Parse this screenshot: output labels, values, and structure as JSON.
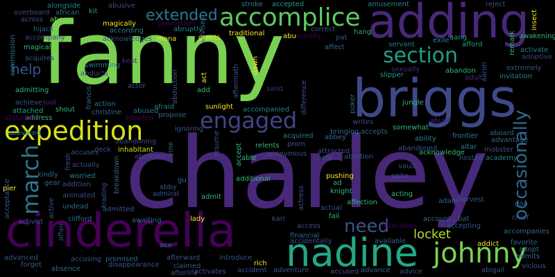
{
  "background": "#000000",
  "palette": [
    "#fde725",
    "#b5de2b",
    "#6ece58",
    "#35b779",
    "#1f9e89",
    "#26828e",
    "#31688e",
    "#3e4989",
    "#482878",
    "#440154"
  ],
  "words": [
    {
      "t": "fanny",
      "c": "#7ad151"
    },
    {
      "t": "charley",
      "c": "#482878"
    },
    {
      "t": "briggs",
      "c": "#3e4989"
    },
    {
      "t": "adding",
      "c": "#482878"
    },
    {
      "t": "cinderella",
      "c": "#440154"
    },
    {
      "t": "nadine",
      "c": "#22a884"
    },
    {
      "t": "expedition",
      "c": "#d8e219"
    },
    {
      "t": "accomplice",
      "c": "#5ec962"
    },
    {
      "t": "johnny",
      "c": "#7ad151"
    },
    {
      "t": "section",
      "c": "#1f9e89"
    },
    {
      "t": "engaged",
      "c": "#414487"
    },
    {
      "t": "march",
      "c": "#2a788e"
    },
    {
      "t": "need",
      "c": "#3b528b"
    },
    {
      "t": "occasionally",
      "c": "#31688e"
    },
    {
      "t": "extended",
      "c": "#2a788e"
    },
    {
      "t": "locket",
      "c": "#b5de2b"
    },
    {
      "t": "help",
      "c": "#3b528b"
    },
    {
      "t": "alongside",
      "c": "#26828e"
    },
    {
      "t": "abusive",
      "c": "#3e4989"
    },
    {
      "t": "stroke",
      "c": "#26828e"
    },
    {
      "t": "accepted",
      "c": "#1f9e89"
    },
    {
      "t": "amusement",
      "c": "#26828e"
    },
    {
      "t": "reject",
      "c": "#3e4989"
    },
    {
      "t": "overboard",
      "c": "#3e4989"
    },
    {
      "t": "african",
      "c": "#2a788e"
    },
    {
      "t": "kit",
      "c": "#1f9e89"
    },
    {
      "t": "across",
      "c": "#3b528b"
    },
    {
      "t": "abe",
      "c": "#6ece58"
    },
    {
      "t": "magically",
      "c": "#fde725"
    },
    {
      "t": "godmother",
      "c": "#440154"
    },
    {
      "t": "advises",
      "c": "#31688e"
    },
    {
      "t": "hijack",
      "c": "#31688e"
    },
    {
      "t": "according",
      "c": "#2a788e"
    },
    {
      "t": "abruptly",
      "c": "#26828e"
    },
    {
      "t": "traditional",
      "c": "#fde725"
    },
    {
      "t": "abu",
      "c": "#fde725"
    },
    {
      "t": "correct",
      "c": "#3b528b"
    },
    {
      "t": "hang",
      "c": "#22a884"
    },
    {
      "t": "aang",
      "c": "#1f9e89"
    },
    {
      "t": "afford",
      "c": "#1f9e89"
    },
    {
      "t": "awakening",
      "c": "#35b779"
    },
    {
      "t": "accompany",
      "c": "#414487"
    },
    {
      "t": "acknowledges",
      "c": "#3b528b"
    },
    {
      "t": "mona",
      "c": "#fde725"
    },
    {
      "t": "greets",
      "c": "#fde725"
    },
    {
      "t": "activity",
      "c": "#440154"
    },
    {
      "t": "pat",
      "c": "#3b528b"
    },
    {
      "t": "servant",
      "c": "#2a788e"
    },
    {
      "t": "exile",
      "c": "#26828e"
    },
    {
      "t": "activate",
      "c": "#26828e"
    },
    {
      "t": "adoptive",
      "c": "#414487"
    },
    {
      "t": "commission",
      "c": "#2a788e"
    },
    {
      "t": "magical",
      "c": "#35b779"
    },
    {
      "t": "affect",
      "c": "#31688e"
    },
    {
      "t": "abandon",
      "c": "#35b779"
    },
    {
      "t": "sexually",
      "c": "#482878"
    },
    {
      "t": "acquires",
      "c": "#3b528b"
    },
    {
      "t": "abducts",
      "c": "#414487"
    },
    {
      "t": "swimming",
      "c": "#2a788e"
    },
    {
      "t": "kept",
      "c": "#482878"
    },
    {
      "t": "slipper",
      "c": "#1f9e89"
    },
    {
      "t": "adult",
      "c": "#482878"
    },
    {
      "t": "extremely",
      "c": "#3b528b"
    },
    {
      "t": "invitation",
      "c": "#26828e"
    },
    {
      "t": "admitting",
      "c": "#35b779"
    },
    {
      "t": "actor",
      "c": "#3b528b"
    },
    {
      "t": "add",
      "c": "#35b779"
    },
    {
      "t": "sand",
      "c": "#482878"
    },
    {
      "t": "achieve",
      "c": "#3b528b"
    },
    {
      "t": "tool",
      "c": "#482878"
    },
    {
      "t": "action",
      "c": "#2a788e"
    },
    {
      "t": "attached",
      "c": "#22a884"
    },
    {
      "t": "shout",
      "c": "#35b779"
    },
    {
      "t": "activated",
      "c": "#26828e"
    },
    {
      "t": "christine",
      "c": "#31688e"
    },
    {
      "t": "abused",
      "c": "#2a788e"
    },
    {
      "t": "afraid",
      "c": "#26828e"
    },
    {
      "t": "sunlight",
      "c": "#fde725"
    },
    {
      "t": "accompanied",
      "c": "#26828e"
    },
    {
      "t": "address",
      "c": "#35b779"
    },
    {
      "t": "adopted",
      "c": "#440154"
    },
    {
      "t": "propose",
      "c": "#31688e"
    },
    {
      "t": "poker",
      "c": "#31688e"
    },
    {
      "t": "jungle",
      "c": "#35b779"
    },
    {
      "t": "abducted",
      "c": "#440154"
    },
    {
      "t": "writes",
      "c": "#3e4989"
    },
    {
      "t": "bringing",
      "c": "#31688e"
    },
    {
      "t": "abuse",
      "c": "#482878"
    },
    {
      "t": "somewhat",
      "c": "#35b779"
    },
    {
      "t": "accepts",
      "c": "#31688e"
    },
    {
      "t": "abandoning",
      "c": "#3e4989"
    },
    {
      "t": "ignoring",
      "c": "#3b528b"
    },
    {
      "t": "acquired",
      "c": "#26828e"
    },
    {
      "t": "abbey",
      "c": "#31688e"
    },
    {
      "t": "ability",
      "c": "#26828e"
    },
    {
      "t": "frontier",
      "c": "#26828e"
    },
    {
      "t": "aboard",
      "c": "#31688e"
    },
    {
      "t": "advantage",
      "c": "#31688e"
    },
    {
      "t": "mobster",
      "c": "#3b528b"
    },
    {
      "t": "inhabitant",
      "c": "#d8e219"
    },
    {
      "t": "accuses",
      "c": "#3b528b"
    },
    {
      "t": "deck",
      "c": "#3b528b"
    },
    {
      "t": "abraham",
      "c": "#3e4989"
    },
    {
      "t": "relents",
      "c": "#35b779"
    },
    {
      "t": "prom",
      "c": "#3b528b"
    },
    {
      "t": "attracted",
      "c": "#3b528b"
    },
    {
      "t": "abandoned",
      "c": "#3b528b"
    },
    {
      "t": "acknowledge",
      "c": "#35b779"
    },
    {
      "t": "altar",
      "c": "#26828e"
    },
    {
      "t": "hosted",
      "c": "#3b528b"
    },
    {
      "t": "academy",
      "c": "#26828e"
    },
    {
      "t": "actually",
      "c": "#3e4989"
    },
    {
      "t": "able",
      "c": "#35b779"
    },
    {
      "t": "anonymous",
      "c": "#3b528b"
    },
    {
      "t": "acid",
      "c": "#3b528b"
    },
    {
      "t": "abortion",
      "c": "#3b528b"
    },
    {
      "t": "vault",
      "c": "#3b528b"
    },
    {
      "t": "pier",
      "c": "#fde725"
    },
    {
      "t": "kindly",
      "c": "#31688e"
    },
    {
      "t": "worried",
      "c": "#26828e"
    },
    {
      "t": "gear",
      "c": "#31688e"
    },
    {
      "t": "addition",
      "c": "#3b528b"
    },
    {
      "t": "abby",
      "c": "#3b528b"
    },
    {
      "t": "additional",
      "c": "#35b779"
    },
    {
      "t": "spite",
      "c": "#3b528b"
    },
    {
      "t": "gu",
      "c": "#31688e"
    },
    {
      "t": "pushing",
      "c": "#fde725"
    },
    {
      "t": "ad",
      "c": "#35b779"
    },
    {
      "t": "admiral",
      "c": "#3b528b"
    },
    {
      "t": "knight",
      "c": "#35b779"
    },
    {
      "t": "animated",
      "c": "#3e4989"
    },
    {
      "t": "acting",
      "c": "#35b779"
    },
    {
      "t": "admit",
      "c": "#35b779"
    },
    {
      "t": "adam",
      "c": "#31688e"
    },
    {
      "t": "harvest",
      "c": "#3b528b"
    },
    {
      "t": "goo",
      "c": "#31688e"
    },
    {
      "t": "undead",
      "c": "#31688e"
    },
    {
      "t": "admitted",
      "c": "#3b528b"
    },
    {
      "t": "affection",
      "c": "#35b779"
    },
    {
      "t": "actual",
      "c": "#3b528b"
    },
    {
      "t": "activist",
      "c": "#3b528b"
    },
    {
      "t": "clifford",
      "c": "#31688e"
    },
    {
      "t": "awaiting",
      "c": "#31688e"
    },
    {
      "t": "lady",
      "c": "#fde725"
    },
    {
      "t": "fail",
      "c": "#35b779"
    },
    {
      "t": "karl",
      "c": "#3b528b"
    },
    {
      "t": "account",
      "c": "#31688e"
    },
    {
      "t": "bat",
      "c": "#31688e"
    },
    {
      "t": "chief",
      "c": "#3b528b"
    },
    {
      "t": "accepting",
      "c": "#3b528b"
    },
    {
      "t": "access",
      "c": "#3b528b"
    },
    {
      "t": "retaliation",
      "c": "#440154"
    },
    {
      "t": "accompanies",
      "c": "#31688e"
    },
    {
      "t": "ace",
      "c": "#31688e"
    },
    {
      "t": "financial",
      "c": "#31688e"
    },
    {
      "t": "available",
      "c": "#31688e"
    },
    {
      "t": "addict",
      "c": "#fde725"
    },
    {
      "t": "favorite",
      "c": "#31688e"
    },
    {
      "t": "adopt",
      "c": "#31688e"
    },
    {
      "t": "advanced",
      "c": "#3b528b"
    },
    {
      "t": "accusing",
      "c": "#3b528b"
    },
    {
      "t": "promised",
      "c": "#31688e"
    },
    {
      "t": "afterward",
      "c": "#3b528b"
    },
    {
      "t": "introduce",
      "c": "#3b528b"
    },
    {
      "t": "accidentally",
      "c": "#3b528b"
    },
    {
      "t": "admits",
      "c": "#31688e"
    },
    {
      "t": "forget",
      "c": "#3b528b"
    },
    {
      "t": "absence",
      "c": "#31688e"
    },
    {
      "t": "disappearance",
      "c": "#3b528b"
    },
    {
      "t": "claimed",
      "c": "#3b528b"
    },
    {
      "t": "rich",
      "c": "#fde725"
    },
    {
      "t": "afterlife",
      "c": "#3b528b"
    },
    {
      "t": "activates",
      "c": "#3b528b"
    },
    {
      "t": "accident",
      "c": "#3b528b"
    },
    {
      "t": "adventure",
      "c": "#3b528b"
    },
    {
      "t": "accused",
      "c": "#3b528b"
    },
    {
      "t": "advance",
      "c": "#31688e"
    },
    {
      "t": "advice",
      "c": "#3b528b"
    },
    {
      "t": "abigail",
      "c": "#3b528b"
    },
    {
      "t": "vicious",
      "c": "#3b528b"
    },
    {
      "t": "acceptance",
      "c": "#3b528b"
    },
    {
      "t": "active",
      "c": "#3b528b"
    },
    {
      "t": "affair",
      "c": "#3b528b"
    },
    {
      "t": "fresh",
      "c": "#3b528b"
    },
    {
      "t": "trading",
      "c": "#3b528b"
    },
    {
      "t": "breakdown",
      "c": "#31688e"
    },
    {
      "t": "vine",
      "c": "#31688e"
    },
    {
      "t": "resume",
      "c": "#3b528b"
    },
    {
      "t": "accept",
      "c": "#35b779"
    },
    {
      "t": "actress",
      "c": "#3b528b"
    },
    {
      "t": "francis",
      "c": "#31688e"
    },
    {
      "t": "abduction",
      "c": "#3b528b"
    },
    {
      "t": "act",
      "c": "#fde725"
    },
    {
      "t": "aftermath",
      "c": "#3b528b"
    },
    {
      "t": "dawn",
      "c": "#fde725"
    },
    {
      "t": "difference",
      "c": "#3b528b"
    },
    {
      "t": "aaron",
      "c": "#3b528b"
    },
    {
      "t": "insect",
      "c": "#fde725"
    },
    {
      "t": "remark",
      "c": "#35b779"
    }
  ]
}
